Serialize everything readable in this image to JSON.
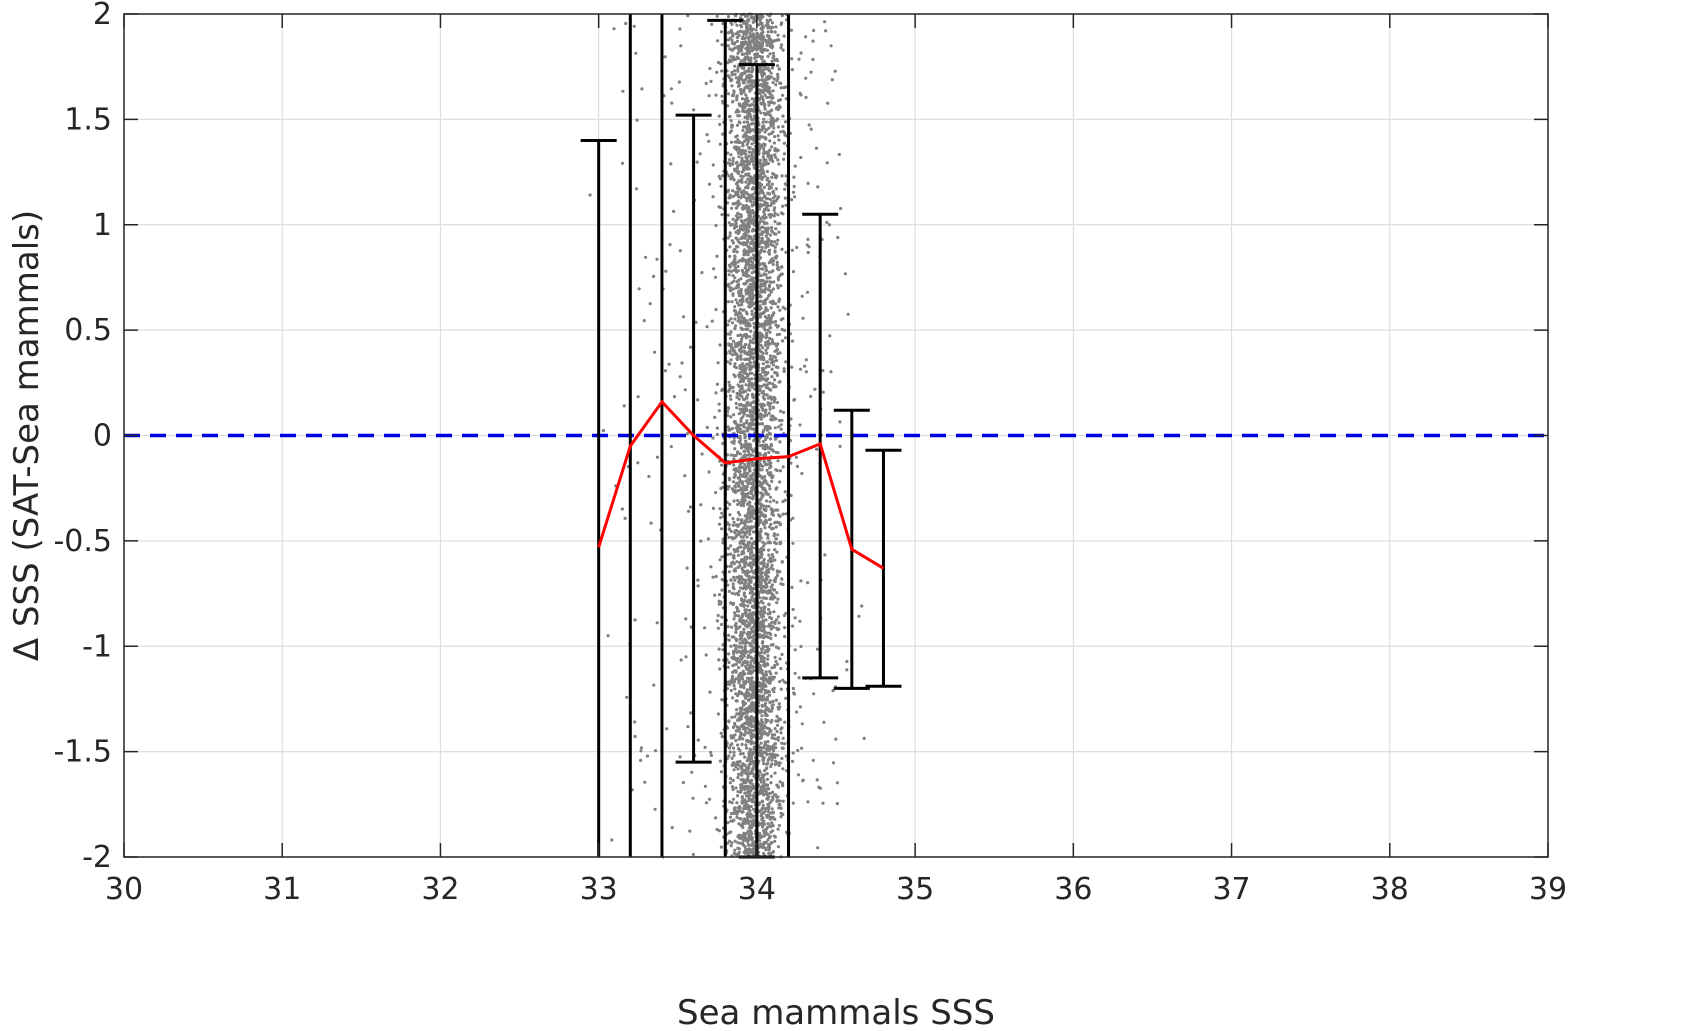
{
  "chart_data": {
    "type": "scatter",
    "xlabel": "Sea mammals SSS",
    "ylabel": "Δ SSS (SAT-Sea mammals)",
    "xlim": [
      30,
      39
    ],
    "ylim": [
      -2,
      2
    ],
    "xticks": [
      30,
      31,
      32,
      33,
      34,
      35,
      36,
      37,
      38,
      39
    ],
    "yticks": [
      -2,
      -1.5,
      -1,
      -0.5,
      0,
      0.5,
      1,
      1.5,
      2
    ],
    "grid": true,
    "zero_line": {
      "y": 0,
      "color": "#0000e6",
      "style": "dashed"
    },
    "scatter_color": "#808080",
    "scatter_description_clusters": [
      {
        "x_center": 33.98,
        "x_spread": 0.09,
        "count": 5200
      },
      {
        "x_center": 33.55,
        "x_spread": 0.25,
        "count": 160
      },
      {
        "x_center": 34.3,
        "x_spread": 0.15,
        "count": 140
      }
    ],
    "mean_line": {
      "color": "#ff0000",
      "points": [
        {
          "x": 33.0,
          "y": -0.53
        },
        {
          "x": 33.2,
          "y": -0.05
        },
        {
          "x": 33.4,
          "y": 0.16
        },
        {
          "x": 33.6,
          "y": 0.0
        },
        {
          "x": 33.8,
          "y": -0.13
        },
        {
          "x": 34.0,
          "y": -0.11
        },
        {
          "x": 34.2,
          "y": -0.1
        },
        {
          "x": 34.4,
          "y": -0.04
        },
        {
          "x": 34.6,
          "y": -0.54
        },
        {
          "x": 34.8,
          "y": -0.63
        }
      ]
    },
    "error_bars": {
      "color": "#000000",
      "bars": [
        {
          "x": 33.0,
          "low": -2.0,
          "high": 1.4
        },
        {
          "x": 33.2,
          "low": -2.0,
          "high": 2.0
        },
        {
          "x": 33.4,
          "low": -2.0,
          "high": 2.0
        },
        {
          "x": 33.6,
          "low": -1.55,
          "high": 1.52
        },
        {
          "x": 33.8,
          "low": -2.0,
          "high": 1.97
        },
        {
          "x": 34.0,
          "low": -2.0,
          "high": 1.76
        },
        {
          "x": 34.2,
          "low": -2.0,
          "high": 2.0
        },
        {
          "x": 34.4,
          "low": -1.15,
          "high": 1.05
        },
        {
          "x": 34.6,
          "low": -1.2,
          "high": 0.12
        },
        {
          "x": 34.8,
          "low": -1.19,
          "high": -0.07
        }
      ]
    }
  }
}
